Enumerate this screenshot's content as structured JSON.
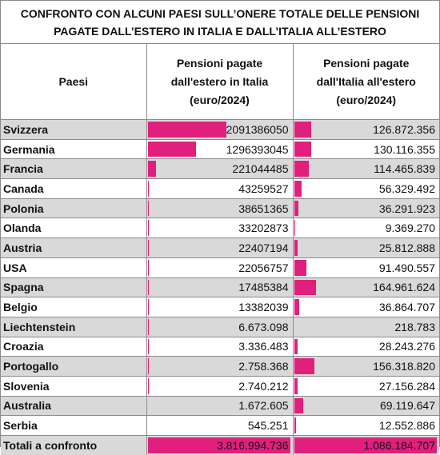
{
  "title_line1": "CONFRONTO CON ALCUNI PAESI SULL’ONERE TOTALE DELLE PENSIONI",
  "title_line2": "PAGATE DALL’ESTERO IN ITALIA E DALL’ITALIA ALL’ESTERO",
  "headers": {
    "col1": "Paesi",
    "col2": [
      "Pensioni pagate",
      "dall'estero in Italia",
      "(euro/2024)"
    ],
    "col3": [
      "Pensioni pagate",
      "dall'Italia all'estero",
      "(euro/2024)"
    ]
  },
  "bar_color": "#e0207c",
  "rows": [
    {
      "paese": "Svizzera",
      "estero_in_italia": "2091386050",
      "italia_all_estero": "126.872.356",
      "bar_in": 0.55,
      "bar_out": 0.12
    },
    {
      "paese": "Germania",
      "estero_in_italia": "1296393045",
      "italia_all_estero": "130.116.355",
      "bar_in": 0.34,
      "bar_out": 0.12
    },
    {
      "paese": "Francia",
      "estero_in_italia": "221044485",
      "italia_all_estero": "114.465.839",
      "bar_in": 0.058,
      "bar_out": 0.105
    },
    {
      "paese": "Canada",
      "estero_in_italia": "43259527",
      "italia_all_estero": "56.329.492",
      "bar_in": 0.011,
      "bar_out": 0.052
    },
    {
      "paese": "Polonia",
      "estero_in_italia": "38651365",
      "italia_all_estero": "36.291.923",
      "bar_in": 0.01,
      "bar_out": 0.033
    },
    {
      "paese": "Olanda",
      "estero_in_italia": "33202873",
      "italia_all_estero": "9.369.270",
      "bar_in": 0.009,
      "bar_out": 0.009
    },
    {
      "paese": "Austria",
      "estero_in_italia": "22407194",
      "italia_all_estero": "25.812.888",
      "bar_in": 0.006,
      "bar_out": 0.024
    },
    {
      "paese": "USA",
      "estero_in_italia": "22056757",
      "italia_all_estero": "91.490.557",
      "bar_in": 0.006,
      "bar_out": 0.084
    },
    {
      "paese": "Spagna",
      "estero_in_italia": "17485384",
      "italia_all_estero": "164.961.624",
      "bar_in": 0.005,
      "bar_out": 0.152
    },
    {
      "paese": "Belgio",
      "estero_in_italia": "13382039",
      "italia_all_estero": "36.864.707",
      "bar_in": 0.0035,
      "bar_out": 0.034
    },
    {
      "paese": "Liechtenstein",
      "estero_in_italia": "6.673.098",
      "italia_all_estero": "218.783",
      "bar_in": 0.0017,
      "bar_out": 0.0002
    },
    {
      "paese": "Croazia",
      "estero_in_italia": "3.336.483",
      "italia_all_estero": "28.243.276",
      "bar_in": 0.0009,
      "bar_out": 0.026
    },
    {
      "paese": "Portogallo",
      "estero_in_italia": "2.758.368",
      "italia_all_estero": "156.318.820",
      "bar_in": 0.0007,
      "bar_out": 0.144
    },
    {
      "paese": "Slovenia",
      "estero_in_italia": "2.740.212",
      "italia_all_estero": "27.156.284",
      "bar_in": 0.0007,
      "bar_out": 0.025
    },
    {
      "paese": "Australia",
      "estero_in_italia": "1.672.605",
      "italia_all_estero": "69.119.647",
      "bar_in": 0.0004,
      "bar_out": 0.064
    },
    {
      "paese": "Serbia",
      "estero_in_italia": "545.251",
      "italia_all_estero": "12.552.886",
      "bar_in": 0.0001,
      "bar_out": 0.012
    }
  ],
  "total": {
    "paese": "Totali  a confronto",
    "estero_in_italia": "3.816.994.736",
    "italia_all_estero": "1.086.184.707",
    "bar_in": 1.0,
    "bar_out": 1.0
  }
}
